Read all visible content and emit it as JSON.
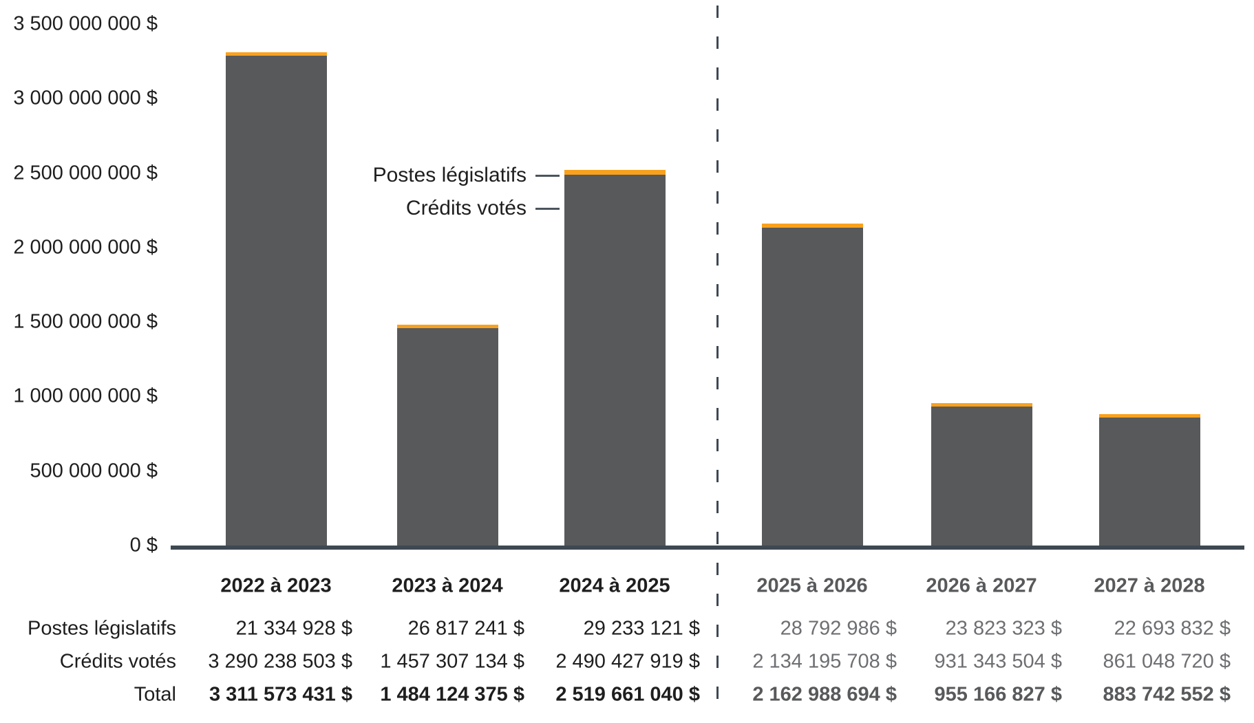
{
  "chart_data": {
    "type": "bar",
    "stacked": true,
    "title": "",
    "xlabel": "",
    "ylabel": "",
    "categories": [
      "2022 à 2023",
      "2023 à 2024",
      "2024 à 2025",
      "2025 à 2026",
      "2026 à 2027",
      "2027 à 2028"
    ],
    "series": [
      {
        "name": "Postes législatifs",
        "color": "#f9a11d",
        "values": [
          21334928,
          26817241,
          29233121,
          28792986,
          23823323,
          22693832
        ]
      },
      {
        "name": "Crédits votés",
        "color": "#58595b",
        "values": [
          3290238503,
          1457307134,
          2490427919,
          2134195708,
          931343504,
          861048720
        ]
      }
    ],
    "totals": [
      3311573431,
      1484124375,
      2519661040,
      2162988694,
      955166827,
      883742552
    ],
    "ylim": [
      0,
      3500000000
    ],
    "ytick_step": 500000000,
    "ytick_labels": [
      "0 $",
      "500 000 000 $",
      "1 000 000 000 $",
      "1 500 000 000 $",
      "2 000 000 000 $",
      "2 500 000 000 $",
      "3 000 000 000 $",
      "3 500 000 000 $"
    ],
    "forecast_start_index": 3,
    "divider_note": "vertical dashed line separates actual years (2022–2025) from planned years (2025–2028)",
    "legend_position": "annotations with connector ticks pointing at third bar",
    "grid": false
  },
  "legend": {
    "postes_label": "Postes législatifs",
    "credits_label": "Crédits votés"
  },
  "table": {
    "row_labels": [
      "Postes législatifs",
      "Crédits votés",
      "Total"
    ],
    "columns": [
      "2022 à 2023",
      "2023 à 2024",
      "2024 à 2025",
      "2025 à 2026",
      "2026 à 2027",
      "2027 à 2028"
    ],
    "values": [
      [
        "21 334 928 $",
        "26 817 241 $",
        "29 233 121 $",
        "28 792 986 $",
        "23 823 323 $",
        "22 693 832 $"
      ],
      [
        "3 290 238 503 $",
        "1 457 307 134 $",
        "2 490 427 919 $",
        "2 134 195 708 $",
        "931 343 504 $",
        "861 048 720 $"
      ],
      [
        "3 311 573 431 $",
        "1 484 124 375 $",
        "2 519 661 040 $",
        "2 162 988 694 $",
        "955 166 827 $",
        "883 742 552 $"
      ]
    ]
  },
  "colors": {
    "bar_credits": "#58595b",
    "bar_postes": "#f9a11d",
    "axis_line": "#3d4852",
    "divider_dash": "#3d4852",
    "text_black": "#1e1e1e",
    "text_forecast_bold": "#58595b",
    "text_forecast": "#6e6f72"
  }
}
